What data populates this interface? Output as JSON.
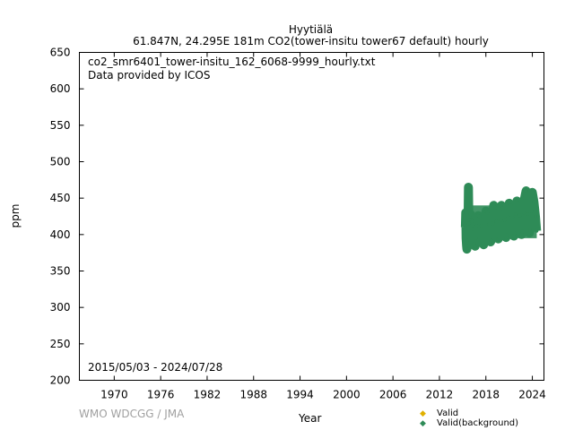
{
  "header": {
    "station": "Hyytiälä",
    "subtitle": "61.847N, 24.295E 181m    CO2(tower-insitu tower67 default) hourly"
  },
  "plot": {
    "file_label": "co2_smr6401_tower-insitu_162_6068-9999_hourly.txt",
    "provider": "Data provided by ICOS",
    "date_range": "2015/05/03 - 2024/07/28",
    "credit": "WMO WDCGG / JMA"
  },
  "legend": {
    "valid": "Valid",
    "valid_background": "Valid(background)",
    "valid_color": "#e0b000",
    "background_color": "#2e8b57"
  },
  "chart_data": {
    "type": "scatter",
    "xlabel": "Year",
    "ylabel": "ppm",
    "xlim": [
      1965.5,
      2025.5
    ],
    "ylim": [
      200,
      650
    ],
    "xticks": [
      1970,
      1976,
      1982,
      1988,
      1994,
      2000,
      2006,
      2012,
      2018,
      2024
    ],
    "yticks": [
      200,
      250,
      300,
      350,
      400,
      450,
      500,
      550,
      600,
      650
    ],
    "series": [
      {
        "name": "Valid(background)",
        "color": "#2e8b57",
        "data_start": 2015.33,
        "data_end": 2024.57,
        "points": [
          [
            2015.35,
            410
          ],
          [
            2015.4,
            430
          ],
          [
            2015.45,
            395
          ],
          [
            2015.5,
            385
          ],
          [
            2015.55,
            380
          ],
          [
            2015.6,
            392
          ],
          [
            2015.7,
            420
          ],
          [
            2015.75,
            465
          ],
          [
            2015.8,
            415
          ],
          [
            2015.9,
            425
          ],
          [
            2016.0,
            428
          ],
          [
            2016.1,
            420
          ],
          [
            2016.2,
            418
          ],
          [
            2016.3,
            408
          ],
          [
            2016.5,
            388
          ],
          [
            2016.6,
            384
          ],
          [
            2016.7,
            395
          ],
          [
            2016.8,
            412
          ],
          [
            2017.0,
            426
          ],
          [
            2017.2,
            425
          ],
          [
            2017.4,
            412
          ],
          [
            2017.6,
            388
          ],
          [
            2017.7,
            386
          ],
          [
            2017.8,
            398
          ],
          [
            2018.0,
            432
          ],
          [
            2018.2,
            430
          ],
          [
            2018.4,
            414
          ],
          [
            2018.6,
            390
          ],
          [
            2018.7,
            392
          ],
          [
            2018.9,
            415
          ],
          [
            2019.0,
            440
          ],
          [
            2019.2,
            437
          ],
          [
            2019.4,
            418
          ],
          [
            2019.6,
            394
          ],
          [
            2019.7,
            396
          ],
          [
            2019.9,
            420
          ],
          [
            2020.0,
            440
          ],
          [
            2020.2,
            436
          ],
          [
            2020.4,
            420
          ],
          [
            2020.6,
            396
          ],
          [
            2020.7,
            399
          ],
          [
            2020.9,
            424
          ],
          [
            2021.0,
            443
          ],
          [
            2021.2,
            440
          ],
          [
            2021.4,
            424
          ],
          [
            2021.6,
            398
          ],
          [
            2021.7,
            402
          ],
          [
            2021.9,
            428
          ],
          [
            2022.0,
            446
          ],
          [
            2022.2,
            443
          ],
          [
            2022.4,
            426
          ],
          [
            2022.6,
            400
          ],
          [
            2022.7,
            404
          ],
          [
            2022.9,
            430
          ],
          [
            2023.0,
            450
          ],
          [
            2023.2,
            460
          ],
          [
            2023.4,
            428
          ],
          [
            2023.6,
            402
          ],
          [
            2023.7,
            406
          ],
          [
            2023.9,
            432
          ],
          [
            2024.0,
            458
          ],
          [
            2024.2,
            445
          ],
          [
            2024.4,
            425
          ],
          [
            2024.55,
            405
          ]
        ]
      }
    ]
  }
}
